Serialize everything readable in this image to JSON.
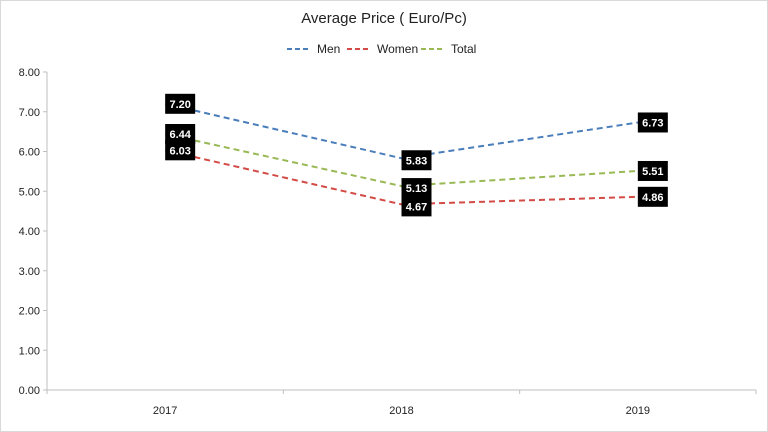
{
  "chart_data": {
    "type": "line",
    "title": "Average Price ( Euro/Pc)",
    "xlabel": "",
    "ylabel": "",
    "categories": [
      "2017",
      "2018",
      "2019"
    ],
    "ylim": [
      0,
      8
    ],
    "y_ticks": [
      "0.00",
      "1.00",
      "2.00",
      "3.00",
      "4.00",
      "5.00",
      "6.00",
      "7.00",
      "8.00"
    ],
    "grid": false,
    "legend_position": "top",
    "line_style": "dashed",
    "series": [
      {
        "name": "Men",
        "color": "#4a7ebb",
        "values": [
          7.2,
          5.83,
          6.73
        ],
        "labels": [
          "7.20",
          "5.83",
          "6.73"
        ]
      },
      {
        "name": "Women",
        "color": "#d34b46",
        "values": [
          6.03,
          4.67,
          4.86
        ],
        "labels": [
          "6.03",
          "4.67",
          "4.86"
        ]
      },
      {
        "name": "Total",
        "color": "#98b954",
        "values": [
          6.44,
          5.13,
          5.51
        ],
        "labels": [
          "6.44",
          "5.13",
          "5.51"
        ]
      }
    ],
    "data_label_style": {
      "background": "#000000",
      "text_color": "#ffffff"
    }
  }
}
